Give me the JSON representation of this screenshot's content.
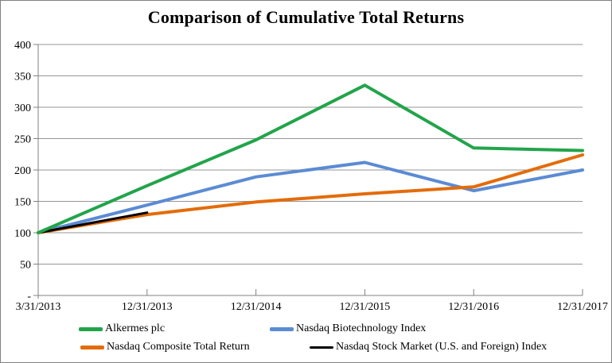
{
  "chart_data": {
    "type": "line",
    "title": "Comparison of Cumulative Total Returns",
    "xlabel": "",
    "ylabel": "",
    "x_labels": [
      "3/31/2013",
      "12/31/2013",
      "12/31/2014",
      "12/31/2015",
      "12/31/2016",
      "12/31/2017"
    ],
    "y_tick_labels": [
      "-",
      "50",
      "100",
      "150",
      "200",
      "250",
      "300",
      "350",
      "400"
    ],
    "ylim": [
      0,
      400
    ],
    "y_step": 50,
    "grid": "horizontal-only",
    "legend_position": "bottom-two-columns",
    "series": [
      {
        "name": "Alkermes plc",
        "color": "#22A44B",
        "values": [
          100,
          175,
          248,
          335,
          235,
          231
        ]
      },
      {
        "name": "Nasdaq Biotechnology Index",
        "color": "#5B8BD4",
        "values": [
          100,
          144,
          189,
          212,
          167,
          200
        ]
      },
      {
        "name": "Nasdaq Composite Total Return",
        "color": "#E36C0A",
        "values": [
          100,
          129,
          149,
          162,
          173,
          224
        ]
      },
      {
        "name": "Nasdaq Stock Market (U.S. and Foreign) Index",
        "color": "#000000",
        "values": [
          100,
          132,
          null,
          null,
          null,
          null
        ]
      }
    ],
    "colors": {
      "gridline": "#969696",
      "axis": "#808080",
      "text": "#000000",
      "background": "#FFFFFF"
    }
  }
}
